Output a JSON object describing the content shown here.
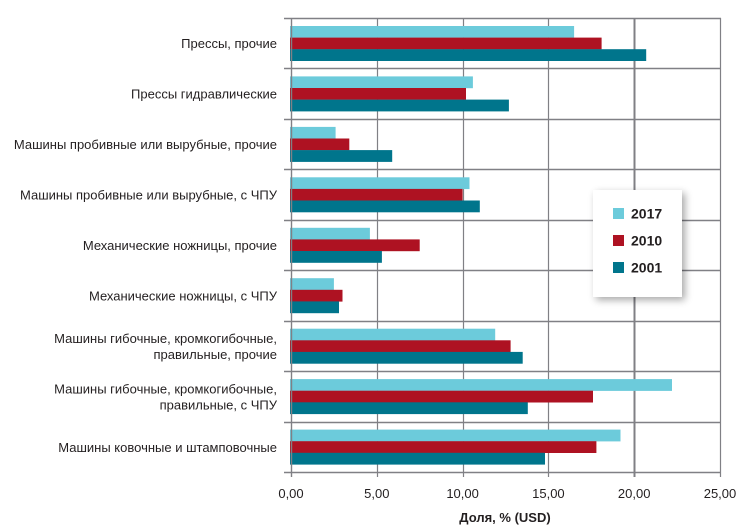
{
  "chart_data": {
    "type": "bar",
    "orientation": "horizontal",
    "title": "",
    "xlabel": "Доля, % (USD)",
    "ylabel": "",
    "xlim": [
      0,
      25
    ],
    "xticks": [
      0,
      5,
      10,
      15,
      20,
      25
    ],
    "xtick_labels": [
      "0,00",
      "5,00",
      "10,00",
      "15,00",
      "20,00",
      "25,00"
    ],
    "grid": true,
    "legend_position": "right",
    "categories": [
      [
        "Прессы, прочие"
      ],
      [
        "Прессы гидравлические"
      ],
      [
        "Машины пробивные или вырубные, прочие"
      ],
      [
        "Машины пробивные или вырубные, с ЧПУ"
      ],
      [
        "Механические ножницы, прочие"
      ],
      [
        "Механические ножницы, с ЧПУ"
      ],
      [
        "Машины гибочные, кромкогибочные,",
        "правильные, прочие"
      ],
      [
        "Машины гибочные, кромкогибочные,",
        "правильные, с ЧПУ"
      ],
      [
        "Машины ковочные и штамповочные"
      ]
    ],
    "series": [
      {
        "name": "2017",
        "color": "#6ccbdb",
        "values": [
          16.5,
          10.6,
          2.6,
          10.4,
          4.6,
          2.5,
          11.9,
          22.2,
          19.2
        ]
      },
      {
        "name": "2010",
        "color": "#ae1222",
        "values": [
          18.1,
          10.2,
          3.4,
          10.0,
          7.5,
          3.0,
          12.8,
          17.6,
          17.8
        ]
      },
      {
        "name": "2001",
        "color": "#00758c",
        "values": [
          20.7,
          12.7,
          5.9,
          11.0,
          5.3,
          2.8,
          13.5,
          13.8,
          14.8
        ]
      }
    ],
    "gridline_color": "#808085"
  }
}
